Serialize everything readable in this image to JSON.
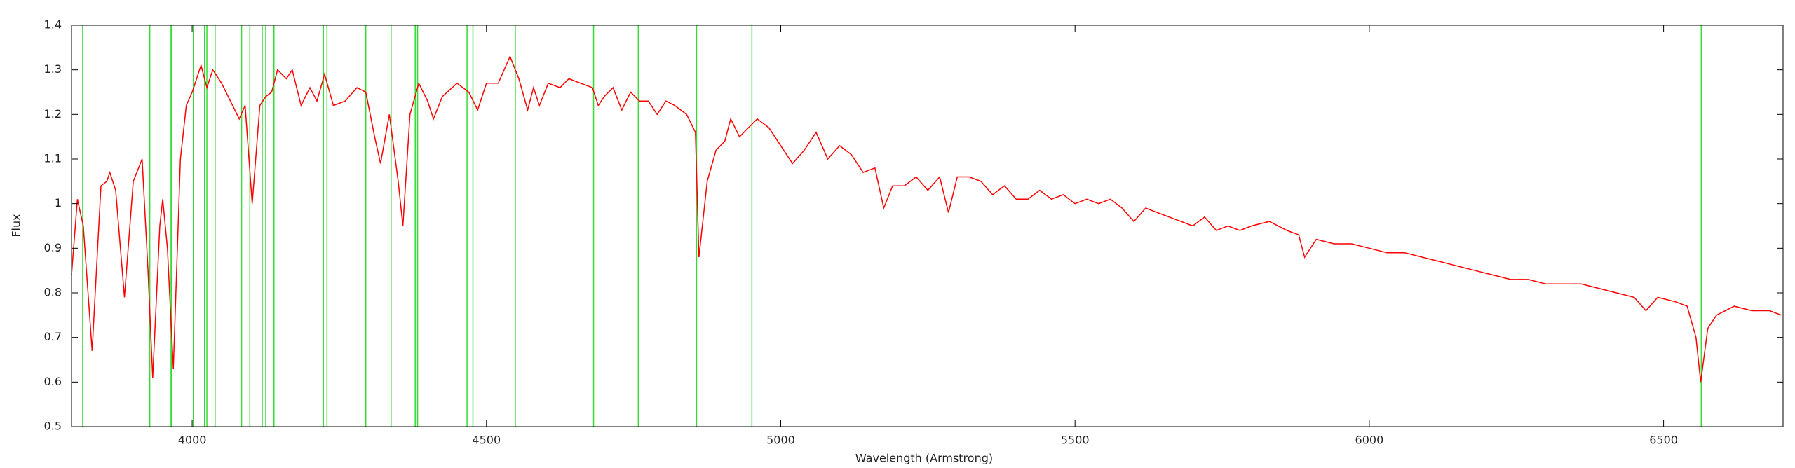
{
  "chart_data": {
    "type": "line",
    "xlabel": "Wavelength (Armstrong)",
    "ylabel": "Flux",
    "xlim": [
      3795,
      6703
    ],
    "ylim": [
      0.5,
      1.4
    ],
    "xticks": [
      4000,
      4500,
      5000,
      5500,
      6000,
      6500
    ],
    "yticks": [
      0.5,
      0.6,
      0.7,
      0.8,
      0.9,
      1,
      1.1,
      1.2,
      1.3,
      1.4
    ],
    "reference_lines": {
      "color": "#33dd33",
      "values": [
        3814,
        3928,
        3963,
        3965,
        4002,
        4021,
        4025,
        4039,
        4084,
        4098,
        4119,
        4125,
        4139,
        4223,
        4229,
        4295,
        4338,
        4379,
        4383,
        4467,
        4477,
        4549,
        4682,
        4758,
        4857,
        4951,
        6564
      ]
    },
    "series": [
      {
        "color": "#ff0000",
        "x": [
          3795,
          3805,
          3815,
          3830,
          3845,
          3855,
          3860,
          3870,
          3885,
          3900,
          3915,
          3925,
          3933,
          3945,
          3950,
          3958,
          3968,
          3980,
          3990,
          4000,
          4015,
          4025,
          4035,
          4050,
          4065,
          4080,
          4090,
          4102,
          4115,
          4125,
          4135,
          4145,
          4160,
          4170,
          4185,
          4200,
          4212,
          4225,
          4240,
          4260,
          4280,
          4295,
          4310,
          4320,
          4335,
          4350,
          4358,
          4370,
          4385,
          4400,
          4410,
          4425,
          4450,
          4470,
          4485,
          4500,
          4520,
          4540,
          4555,
          4570,
          4580,
          4590,
          4605,
          4625,
          4640,
          4660,
          4680,
          4690,
          4700,
          4715,
          4730,
          4745,
          4760,
          4775,
          4790,
          4805,
          4820,
          4840,
          4855,
          4861,
          4875,
          4890,
          4905,
          4915,
          4930,
          4945,
          4960,
          4980,
          5000,
          5020,
          5040,
          5060,
          5080,
          5100,
          5120,
          5140,
          5160,
          5175,
          5190,
          5210,
          5230,
          5250,
          5270,
          5285,
          5300,
          5320,
          5340,
          5360,
          5380,
          5400,
          5420,
          5440,
          5460,
          5480,
          5500,
          5520,
          5540,
          5560,
          5580,
          5600,
          5620,
          5640,
          5660,
          5680,
          5700,
          5720,
          5740,
          5760,
          5780,
          5800,
          5830,
          5860,
          5880,
          5890,
          5910,
          5940,
          5970,
          6000,
          6030,
          6060,
          6090,
          6120,
          6150,
          6180,
          6210,
          6240,
          6270,
          6300,
          6330,
          6360,
          6390,
          6420,
          6450,
          6470,
          6490,
          6520,
          6540,
          6555,
          6563,
          6575,
          6590,
          6620,
          6650,
          6680,
          6700
        ],
        "values": [
          0.84,
          1.01,
          0.95,
          0.67,
          1.04,
          1.05,
          1.07,
          1.03,
          0.79,
          1.05,
          1.1,
          0.85,
          0.61,
          0.95,
          1.01,
          0.9,
          0.63,
          1.1,
          1.22,
          1.25,
          1.31,
          1.26,
          1.3,
          1.27,
          1.23,
          1.19,
          1.22,
          1.0,
          1.22,
          1.24,
          1.25,
          1.3,
          1.28,
          1.3,
          1.22,
          1.26,
          1.23,
          1.29,
          1.22,
          1.23,
          1.26,
          1.25,
          1.15,
          1.09,
          1.2,
          1.05,
          0.95,
          1.2,
          1.27,
          1.23,
          1.19,
          1.24,
          1.27,
          1.25,
          1.21,
          1.27,
          1.27,
          1.33,
          1.28,
          1.21,
          1.26,
          1.22,
          1.27,
          1.26,
          1.28,
          1.27,
          1.26,
          1.22,
          1.24,
          1.26,
          1.21,
          1.25,
          1.23,
          1.23,
          1.2,
          1.23,
          1.22,
          1.2,
          1.16,
          0.88,
          1.05,
          1.12,
          1.14,
          1.19,
          1.15,
          1.17,
          1.19,
          1.17,
          1.13,
          1.09,
          1.12,
          1.16,
          1.1,
          1.13,
          1.11,
          1.07,
          1.08,
          0.99,
          1.04,
          1.04,
          1.06,
          1.03,
          1.06,
          0.98,
          1.06,
          1.06,
          1.05,
          1.02,
          1.04,
          1.01,
          1.01,
          1.03,
          1.01,
          1.02,
          1.0,
          1.01,
          1.0,
          1.01,
          0.99,
          0.96,
          0.99,
          0.98,
          0.97,
          0.96,
          0.95,
          0.97,
          0.94,
          0.95,
          0.94,
          0.95,
          0.96,
          0.94,
          0.93,
          0.88,
          0.92,
          0.91,
          0.91,
          0.9,
          0.89,
          0.89,
          0.88,
          0.87,
          0.86,
          0.85,
          0.84,
          0.83,
          0.83,
          0.82,
          0.82,
          0.82,
          0.81,
          0.8,
          0.79,
          0.76,
          0.79,
          0.78,
          0.77,
          0.7,
          0.6,
          0.72,
          0.75,
          0.77,
          0.76,
          0.76,
          0.75
        ]
      }
    ]
  }
}
